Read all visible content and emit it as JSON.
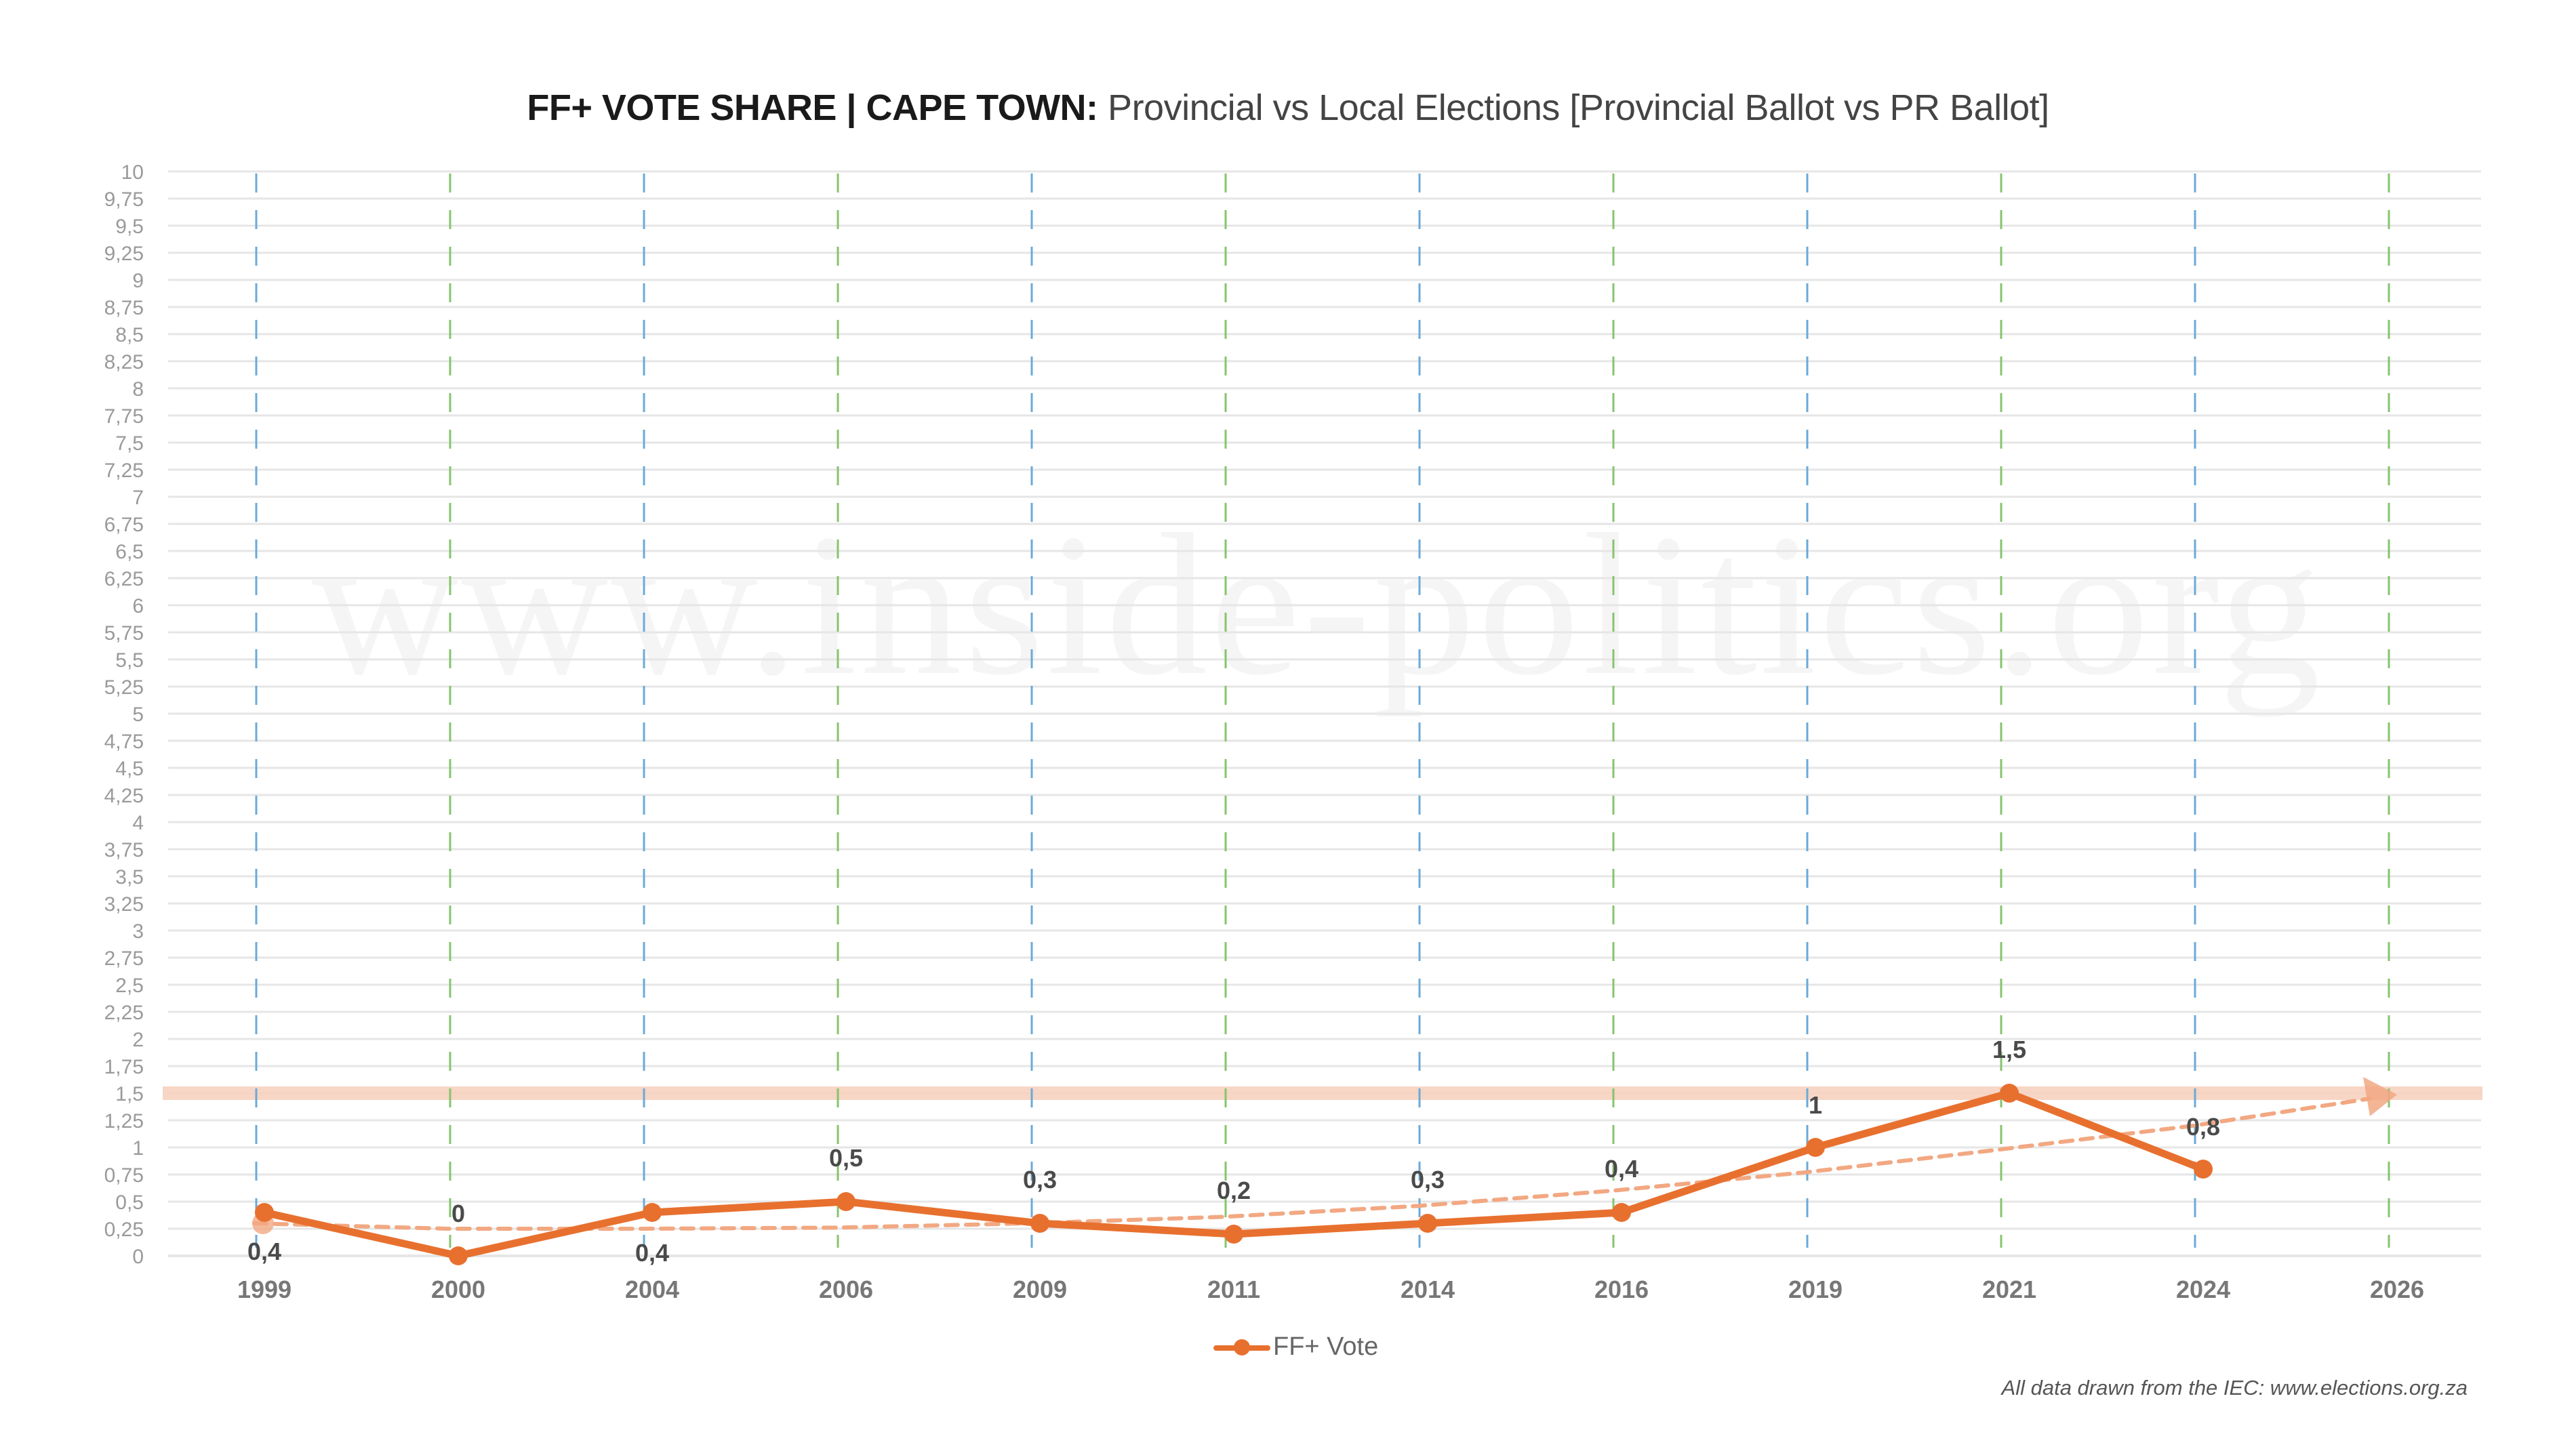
{
  "title": {
    "bold": "FF+ VOTE SHARE | CAPE TOWN:",
    "rest": "Provincial vs Local Elections [Provincial Ballot vs PR Ballot]"
  },
  "watermark": "www.inside-politics.org",
  "legend": {
    "label": "FF+ Vote"
  },
  "footnote": "All data drawn from the IEC: www.elections.org.za",
  "colors": {
    "series": "#e8702f",
    "trend": "#f2a882",
    "highlight_band": "#f6d2bf",
    "provincial_guide": "#6aaad8",
    "local_guide": "#86c46e",
    "grid": "#e6e6e6",
    "tick_text": "#9a9a9a",
    "xtick_text": "#777777",
    "data_label": "#4a4a4a"
  },
  "chart_data": {
    "type": "line",
    "title": "FF+ VOTE SHARE | CAPE TOWN: Provincial vs Local Elections [Provincial Ballot vs PR Ballot]",
    "xlabel": "",
    "ylabel": "",
    "categories": [
      "1999",
      "2000",
      "2004",
      "2006",
      "2009",
      "2011",
      "2014",
      "2016",
      "2019",
      "2021",
      "2024",
      "2026"
    ],
    "series": [
      {
        "name": "FF+ Vote",
        "values": [
          0.4,
          0,
          0.4,
          0.5,
          0.3,
          0.2,
          0.3,
          0.4,
          1,
          1.5,
          0.8,
          null
        ]
      }
    ],
    "data_labels": [
      "0,4",
      "0",
      "0,4",
      "0,5",
      "0,3",
      "0,2",
      "0,3",
      "0,4",
      "1",
      "1,5",
      "0,8",
      ""
    ],
    "election_types": [
      "provincial",
      "local",
      "provincial",
      "local",
      "provincial",
      "local",
      "provincial",
      "local",
      "provincial",
      "local",
      "provincial",
      "local"
    ],
    "trendline": {
      "type": "dashed-with-arrow",
      "points": [
        [
          0,
          0.3
        ],
        [
          1,
          0.25
        ],
        [
          2,
          0.25
        ],
        [
          3,
          0.26
        ],
        [
          4,
          0.3
        ],
        [
          5,
          0.36
        ],
        [
          6,
          0.46
        ],
        [
          7,
          0.6
        ],
        [
          8,
          0.77
        ],
        [
          9,
          0.98
        ],
        [
          10,
          1.2
        ],
        [
          11,
          1.45
        ]
      ]
    },
    "highlight_line": {
      "value": 1.5
    },
    "ylim": [
      0,
      10
    ],
    "ytick_step": 0.25,
    "yticks": [
      "0",
      "0,25",
      "0,5",
      "0,75",
      "1",
      "1,25",
      "1,5",
      "1,75",
      "2",
      "2,25",
      "2,5",
      "2,75",
      "3",
      "3,25",
      "3,5",
      "3,75",
      "4",
      "4,25",
      "4,5",
      "4,75",
      "5",
      "5,25",
      "5,5",
      "5,75",
      "6",
      "6,25",
      "6,5",
      "6,75",
      "7",
      "7,25",
      "7,5",
      "7,75",
      "8",
      "8,25",
      "8,5",
      "8,75",
      "9",
      "9,25",
      "9,5",
      "9,75",
      "10"
    ],
    "grid": true,
    "legend_position": "bottom-center"
  }
}
